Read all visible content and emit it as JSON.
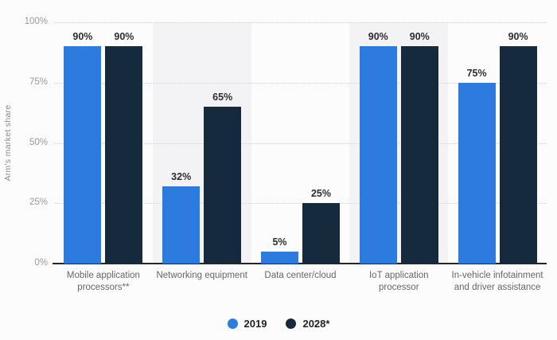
{
  "chart_data": {
    "type": "bar",
    "title": "",
    "ylabel": "Arm's market share",
    "categories": [
      "Mobile application processors**",
      "Networking equipment",
      "Data center/cloud",
      "IoT application processor",
      "In-vehicle infotainment and driver assistance"
    ],
    "series": [
      {
        "name": "2019",
        "color": "#2e7be0",
        "values": [
          90,
          32,
          5,
          90,
          75
        ],
        "labels": [
          "90%",
          "32%",
          "5%",
          "90%",
          "75%"
        ]
      },
      {
        "name": "2028*",
        "color": "#152a3c",
        "values": [
          90,
          65,
          25,
          90,
          90
        ],
        "labels": [
          "90%",
          "65%",
          "25%",
          "90%",
          "90%"
        ]
      }
    ],
    "ylim": [
      0,
      100
    ],
    "yticks": [
      {
        "value": 0,
        "label": "0%"
      },
      {
        "value": 25,
        "label": "25%"
      },
      {
        "value": 50,
        "label": "50%"
      },
      {
        "value": 75,
        "label": "75%"
      },
      {
        "value": 100,
        "label": "100%"
      }
    ],
    "grid": "dotted-horizontal",
    "legend_position": "bottom",
    "banded_categories": [
      1,
      3
    ],
    "band_color": "#f3f3f5"
  },
  "colors": {
    "background": "#fcfcfc",
    "axis_line": "#262626",
    "gridline": "#d2d2d4",
    "tick_text": "#9a9a9a",
    "category_text": "#666666",
    "value_text": "#2e2e2e"
  }
}
